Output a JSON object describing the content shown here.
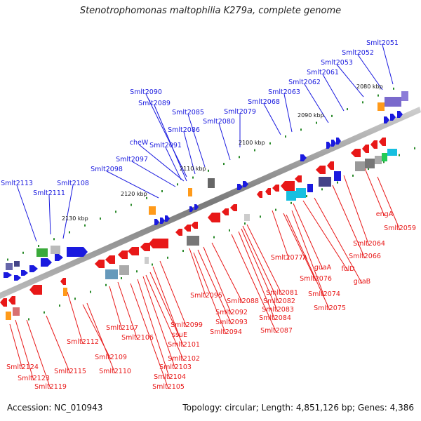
{
  "title": "Stenotrophomonas maltophilia K279a, complete genome",
  "footer": {
    "accession": "Accession: NC_010943",
    "topology": "Topology: circular; Length: 4,851,126 bp; Genes: 4,386"
  },
  "colors": {
    "forward": "#1a1adf",
    "reverse": "#e81818",
    "backbone": "#8a8a8a"
  },
  "ticks": [
    "2080 kbp",
    "2090 kbp",
    "2100 kbp",
    "2110 kbp",
    "2120 kbp",
    "2130 kbp"
  ],
  "upper_labels": [
    "Smlt2051",
    "Smlt2052",
    "Smlt2053",
    "Smlt2061",
    "Smlt2062",
    "Smlt2063",
    "Smlt2068",
    "Smlt2079",
    "Smlt2080",
    "Smlt2085",
    "Smlt2086",
    "Smlt2090",
    "Smlt2089",
    "Smlt2091",
    "cheW",
    "Smlt2097",
    "Smlt2098",
    "Smlt2113",
    "Smlt2111",
    "Smlt2108"
  ],
  "lower_labels": [
    "engA",
    "Smlt2059",
    "Smlt2064",
    "Smlt2066",
    "Smlt2077A",
    "guaA",
    "folD",
    "Smlt2076",
    "guaB",
    "Smlt2074",
    "Smlt2075",
    "Smlt2081",
    "Smlt2082",
    "Smlt2083",
    "Smlt2084",
    "Smlt2087",
    "Smlt2088",
    "Smlt2095",
    "Smlt2092",
    "Smlt2093",
    "Smlt2094",
    "Smlt2099",
    "ssuE",
    "Smlt2101",
    "Smlt2102",
    "Smlt2103",
    "Smlt2104",
    "Smlt2105",
    "Smlt2107",
    "Smlt2106",
    "Smlt2112",
    "Smlt2109",
    "Smlt2110",
    "Smlt2115",
    "Smlt2124",
    "Smlt2123",
    "Smlt2119"
  ]
}
